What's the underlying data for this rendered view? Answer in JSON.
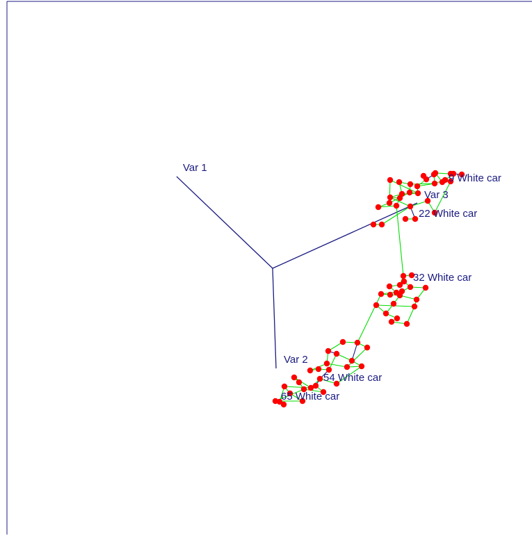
{
  "chart_data": {
    "type": "scatter",
    "title": "",
    "xlabel": "",
    "ylabel": "",
    "colors": {
      "axis": "#1a1a80",
      "points": "#ff0000",
      "edges": "#00dd00",
      "labels": "#1a1a80"
    },
    "axes": [
      {
        "label": "Var 1"
      },
      {
        "label": "Var 2"
      },
      {
        "label": "Var 3"
      }
    ],
    "point_labels": [
      {
        "text": "9 White car"
      },
      {
        "text": "22 White car"
      },
      {
        "text": "32 White car"
      },
      {
        "text": "54 White car"
      },
      {
        "text": "65 White car"
      }
    ]
  }
}
